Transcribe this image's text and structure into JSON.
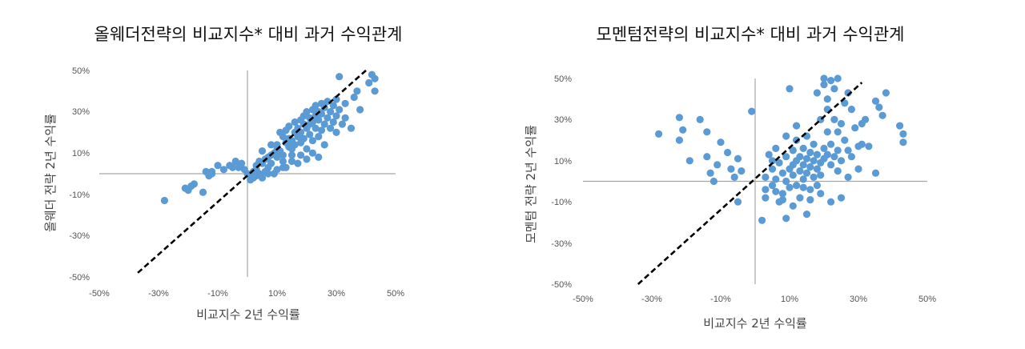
{
  "colors": {
    "points": "#5B9BD5",
    "axis": "#A6A6A6",
    "diagonal": "#000000"
  },
  "chart_data": [
    {
      "type": "scatter",
      "title": "올웨더전략의 비교지수* 대비  과거 수익관계",
      "xlabel": "비교지수 2년 수익률",
      "ylabel": "올웨더 전략 2년 수익률",
      "xlim": [
        -0.5,
        0.5
      ],
      "ylim": [
        -0.5,
        0.5
      ],
      "x_ticks": [
        "-50%",
        "-30%",
        "-10%",
        "10%",
        "30%",
        "50%"
      ],
      "y_ticks": [
        "50%",
        "30%",
        "10%",
        "-10%",
        "-30%",
        "-50%"
      ],
      "reference_line": {
        "style": "dashed",
        "x": [
          -0.37,
          0.4
        ],
        "y": [
          -0.48,
          0.5
        ]
      },
      "grid": false,
      "points": [
        [
          -0.28,
          -0.13
        ],
        [
          -0.21,
          -0.07
        ],
        [
          -0.2,
          -0.08
        ],
        [
          -0.18,
          -0.05
        ],
        [
          -0.19,
          -0.06
        ],
        [
          -0.15,
          -0.09
        ],
        [
          -0.14,
          0.01
        ],
        [
          -0.13,
          -0.01
        ],
        [
          -0.12,
          0.0
        ],
        [
          -0.12,
          0.01
        ],
        [
          -0.1,
          0.04
        ],
        [
          -0.08,
          0.02
        ],
        [
          -0.06,
          0.04
        ],
        [
          -0.05,
          0.03
        ],
        [
          -0.04,
          0.06
        ],
        [
          -0.03,
          0.03
        ],
        [
          -0.02,
          0.05
        ],
        [
          -0.01,
          0.02
        ],
        [
          0.0,
          0.0
        ],
        [
          0.01,
          -0.01
        ],
        [
          0.01,
          -0.03
        ],
        [
          0.02,
          0.01
        ],
        [
          0.02,
          -0.02
        ],
        [
          0.03,
          0.02
        ],
        [
          0.03,
          0.04
        ],
        [
          0.04,
          0.0
        ],
        [
          0.04,
          0.06
        ],
        [
          0.05,
          -0.02
        ],
        [
          0.05,
          0.05
        ],
        [
          0.06,
          0.01
        ],
        [
          0.06,
          0.07
        ],
        [
          0.07,
          0.08
        ],
        [
          0.07,
          0.03
        ],
        [
          0.08,
          0.09
        ],
        [
          0.08,
          0.05
        ],
        [
          0.09,
          0.1
        ],
        [
          0.09,
          0.0
        ],
        [
          0.1,
          0.12
        ],
        [
          0.1,
          0.08
        ],
        [
          0.1,
          0.14
        ],
        [
          0.11,
          0.11
        ],
        [
          0.11,
          0.2
        ],
        [
          0.12,
          0.18
        ],
        [
          0.12,
          0.09
        ],
        [
          0.12,
          0.06
        ],
        [
          0.13,
          0.15
        ],
        [
          0.13,
          0.21
        ],
        [
          0.13,
          0.03
        ],
        [
          0.14,
          0.13
        ],
        [
          0.14,
          0.17
        ],
        [
          0.14,
          0.23
        ],
        [
          0.15,
          0.16
        ],
        [
          0.15,
          0.12
        ],
        [
          0.15,
          0.09
        ],
        [
          0.16,
          0.2
        ],
        [
          0.16,
          0.25
        ],
        [
          0.16,
          0.14
        ],
        [
          0.17,
          0.18
        ],
        [
          0.17,
          0.22
        ],
        [
          0.17,
          0.05
        ],
        [
          0.18,
          0.26
        ],
        [
          0.18,
          0.2
        ],
        [
          0.18,
          0.15
        ],
        [
          0.19,
          0.24
        ],
        [
          0.19,
          0.28
        ],
        [
          0.19,
          0.17
        ],
        [
          0.2,
          0.22
        ],
        [
          0.2,
          0.3
        ],
        [
          0.2,
          0.12
        ],
        [
          0.21,
          0.27
        ],
        [
          0.21,
          0.24
        ],
        [
          0.21,
          0.19
        ],
        [
          0.22,
          0.31
        ],
        [
          0.22,
          0.25
        ],
        [
          0.22,
          0.16
        ],
        [
          0.23,
          0.33
        ],
        [
          0.23,
          0.22
        ],
        [
          0.23,
          0.28
        ],
        [
          0.24,
          0.3
        ],
        [
          0.24,
          0.26
        ],
        [
          0.24,
          0.18
        ],
        [
          0.25,
          0.34
        ],
        [
          0.25,
          0.21
        ],
        [
          0.25,
          0.29
        ],
        [
          0.26,
          0.32
        ],
        [
          0.26,
          0.24
        ],
        [
          0.26,
          0.14
        ],
        [
          0.27,
          0.35
        ],
        [
          0.27,
          0.27
        ],
        [
          0.28,
          0.3
        ],
        [
          0.28,
          0.22
        ],
        [
          0.29,
          0.33
        ],
        [
          0.29,
          0.25
        ],
        [
          0.3,
          0.36
        ],
        [
          0.3,
          0.28
        ],
        [
          0.3,
          0.2
        ],
        [
          0.31,
          0.47
        ],
        [
          0.31,
          0.31
        ],
        [
          0.32,
          0.24
        ],
        [
          0.33,
          0.27
        ],
        [
          0.33,
          0.34
        ],
        [
          0.35,
          0.22
        ],
        [
          0.36,
          0.37
        ],
        [
          0.37,
          0.4
        ],
        [
          0.38,
          0.31
        ],
        [
          0.41,
          0.44
        ],
        [
          0.42,
          0.48
        ],
        [
          0.43,
          0.46
        ],
        [
          0.43,
          0.4
        ],
        [
          0.08,
          0.14
        ],
        [
          0.05,
          0.11
        ],
        [
          0.18,
          0.09
        ],
        [
          0.15,
          0.06
        ],
        [
          0.2,
          0.07
        ],
        [
          0.22,
          0.1
        ],
        [
          0.24,
          0.08
        ],
        [
          0.12,
          0.03
        ],
        [
          0.1,
          0.02
        ],
        [
          0.07,
          0.0
        ],
        [
          0.03,
          -0.01
        ]
      ]
    },
    {
      "type": "scatter",
      "title": "모멘텀전략의 비교지수* 대비 과거 수익관계",
      "xlabel": "비교지수 2년 수익률",
      "ylabel": "모멘텀 전략 2년 수익률",
      "xlim": [
        -0.5,
        0.5
      ],
      "ylim": [
        -0.5,
        0.5
      ],
      "x_ticks": [
        "-50%",
        "-30%",
        "-10%",
        "10%",
        "30%",
        "50%"
      ],
      "y_ticks": [
        "50%",
        "30%",
        "10%",
        "-10%",
        "-30%",
        "-50%"
      ],
      "reference_line": {
        "style": "dashed",
        "x": [
          -0.34,
          0.31
        ],
        "y": [
          -0.5,
          0.48
        ]
      },
      "grid": false,
      "points": [
        [
          -0.28,
          0.23
        ],
        [
          -0.22,
          0.31
        ],
        [
          -0.21,
          0.25
        ],
        [
          -0.22,
          0.2
        ],
        [
          -0.19,
          0.1
        ],
        [
          -0.16,
          0.3
        ],
        [
          -0.14,
          0.24
        ],
        [
          -0.14,
          0.12
        ],
        [
          -0.13,
          0.04
        ],
        [
          -0.12,
          0.0
        ],
        [
          -0.11,
          0.08
        ],
        [
          -0.1,
          0.19
        ],
        [
          -0.08,
          0.14
        ],
        [
          -0.07,
          0.06
        ],
        [
          -0.06,
          0.02
        ],
        [
          -0.05,
          0.11
        ],
        [
          -0.04,
          0.05
        ],
        [
          -0.05,
          -0.1
        ],
        [
          -0.01,
          0.34
        ],
        [
          0.02,
          -0.19
        ],
        [
          0.03,
          0.02
        ],
        [
          0.03,
          -0.04
        ],
        [
          0.03,
          -0.08
        ],
        [
          0.04,
          0.13
        ],
        [
          0.05,
          0.06
        ],
        [
          0.05,
          -0.02
        ],
        [
          0.06,
          -0.05
        ],
        [
          0.07,
          0.09
        ],
        [
          0.07,
          -0.1
        ],
        [
          0.08,
          0.04
        ],
        [
          0.08,
          -0.06
        ],
        [
          0.09,
          0.12
        ],
        [
          0.09,
          0.0
        ],
        [
          0.09,
          -0.18
        ],
        [
          0.1,
          0.45
        ],
        [
          0.1,
          0.06
        ],
        [
          0.1,
          -0.03
        ],
        [
          0.11,
          0.15
        ],
        [
          0.11,
          0.08
        ],
        [
          0.11,
          0.03
        ],
        [
          0.12,
          0.2
        ],
        [
          0.12,
          0.1
        ],
        [
          0.12,
          -0.02
        ],
        [
          0.13,
          0.05
        ],
        [
          0.13,
          0.12
        ],
        [
          0.13,
          -0.08
        ],
        [
          0.14,
          0.16
        ],
        [
          0.14,
          0.08
        ],
        [
          0.14,
          0.01
        ],
        [
          0.15,
          0.22
        ],
        [
          0.15,
          0.11
        ],
        [
          0.15,
          0.04
        ],
        [
          0.15,
          -0.16
        ],
        [
          0.16,
          0.14
        ],
        [
          0.16,
          0.07
        ],
        [
          0.16,
          -0.04
        ],
        [
          0.17,
          0.18
        ],
        [
          0.17,
          0.1
        ],
        [
          0.17,
          0.02
        ],
        [
          0.18,
          0.43
        ],
        [
          0.18,
          0.13
        ],
        [
          0.18,
          0.06
        ],
        [
          0.19,
          0.09
        ],
        [
          0.19,
          -0.06
        ],
        [
          0.2,
          0.5
        ],
        [
          0.2,
          0.47
        ],
        [
          0.2,
          0.16
        ],
        [
          0.2,
          0.11
        ],
        [
          0.21,
          0.4
        ],
        [
          0.21,
          0.24
        ],
        [
          0.21,
          0.13
        ],
        [
          0.22,
          0.49
        ],
        [
          0.22,
          0.08
        ],
        [
          0.22,
          0.18
        ],
        [
          0.23,
          0.45
        ],
        [
          0.23,
          0.3
        ],
        [
          0.23,
          0.12
        ],
        [
          0.24,
          0.5
        ],
        [
          0.24,
          0.24
        ],
        [
          0.24,
          0.15
        ],
        [
          0.25,
          0.28
        ],
        [
          0.25,
          0.1
        ],
        [
          0.26,
          0.2
        ],
        [
          0.27,
          0.43
        ],
        [
          0.27,
          0.15
        ],
        [
          0.28,
          0.35
        ],
        [
          0.28,
          0.12
        ],
        [
          0.29,
          0.26
        ],
        [
          0.3,
          0.17
        ],
        [
          0.3,
          0.06
        ],
        [
          0.31,
          0.28
        ],
        [
          0.31,
          0.18
        ],
        [
          0.32,
          0.3
        ],
        [
          0.33,
          0.17
        ],
        [
          0.35,
          0.39
        ],
        [
          0.35,
          0.04
        ],
        [
          0.36,
          0.36
        ],
        [
          0.37,
          0.32
        ],
        [
          0.38,
          0.43
        ],
        [
          0.42,
          0.27
        ],
        [
          0.43,
          0.23
        ],
        [
          0.43,
          0.19
        ],
        [
          0.14,
          -0.03
        ],
        [
          0.16,
          -0.09
        ],
        [
          0.18,
          -0.02
        ],
        [
          0.22,
          -0.1
        ],
        [
          0.25,
          -0.08
        ],
        [
          0.27,
          0.02
        ],
        [
          0.12,
          0.27
        ],
        [
          0.05,
          0.1
        ],
        [
          0.06,
          0.16
        ],
        [
          0.09,
          0.22
        ],
        [
          0.19,
          0.3
        ],
        [
          0.26,
          0.38
        ],
        [
          0.21,
          0.35
        ],
        [
          0.11,
          -0.12
        ],
        [
          0.08,
          -0.09
        ],
        [
          0.19,
          0.03
        ],
        [
          0.24,
          0.05
        ],
        [
          0.06,
          0.01
        ]
      ]
    }
  ]
}
